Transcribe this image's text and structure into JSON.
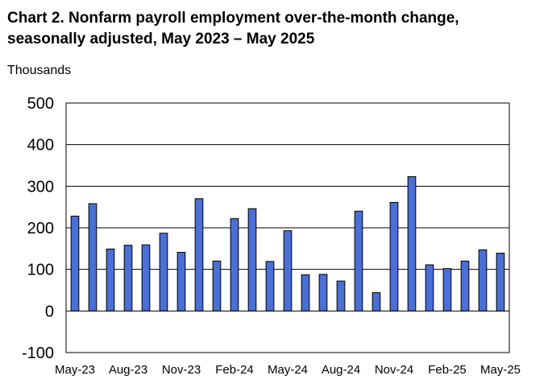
{
  "chart_data": {
    "type": "bar",
    "title": "Chart 2. Nonfarm payroll employment over-the-month change, seasonally adjusted, May 2023 – May 2025",
    "ylabel": "Thousands",
    "xlabel": "",
    "ylim": [
      -100,
      500
    ],
    "yticks": [
      500,
      400,
      300,
      200,
      100,
      0,
      -100
    ],
    "grid": true,
    "categories": [
      "May-23",
      "Jun-23",
      "Jul-23",
      "Aug-23",
      "Sep-23",
      "Oct-23",
      "Nov-23",
      "Dec-23",
      "Jan-24",
      "Feb-24",
      "Mar-24",
      "Apr-24",
      "May-24",
      "Jun-24",
      "Jul-24",
      "Aug-24",
      "Sep-24",
      "Oct-24",
      "Nov-24",
      "Dec-24",
      "Jan-25",
      "Feb-25",
      "Mar-25",
      "Apr-25",
      "May-25"
    ],
    "xtick_labels": [
      "May-23",
      "Aug-23",
      "Nov-23",
      "Feb-24",
      "May-24",
      "Aug-24",
      "Nov-24",
      "Feb-25",
      "May-25"
    ],
    "values": [
      228,
      258,
      149,
      158,
      159,
      187,
      141,
      270,
      120,
      222,
      246,
      119,
      193,
      87,
      88,
      72,
      240,
      44,
      261,
      323,
      111,
      102,
      120,
      147,
      139
    ],
    "bar_color": "#4a6fd6"
  }
}
